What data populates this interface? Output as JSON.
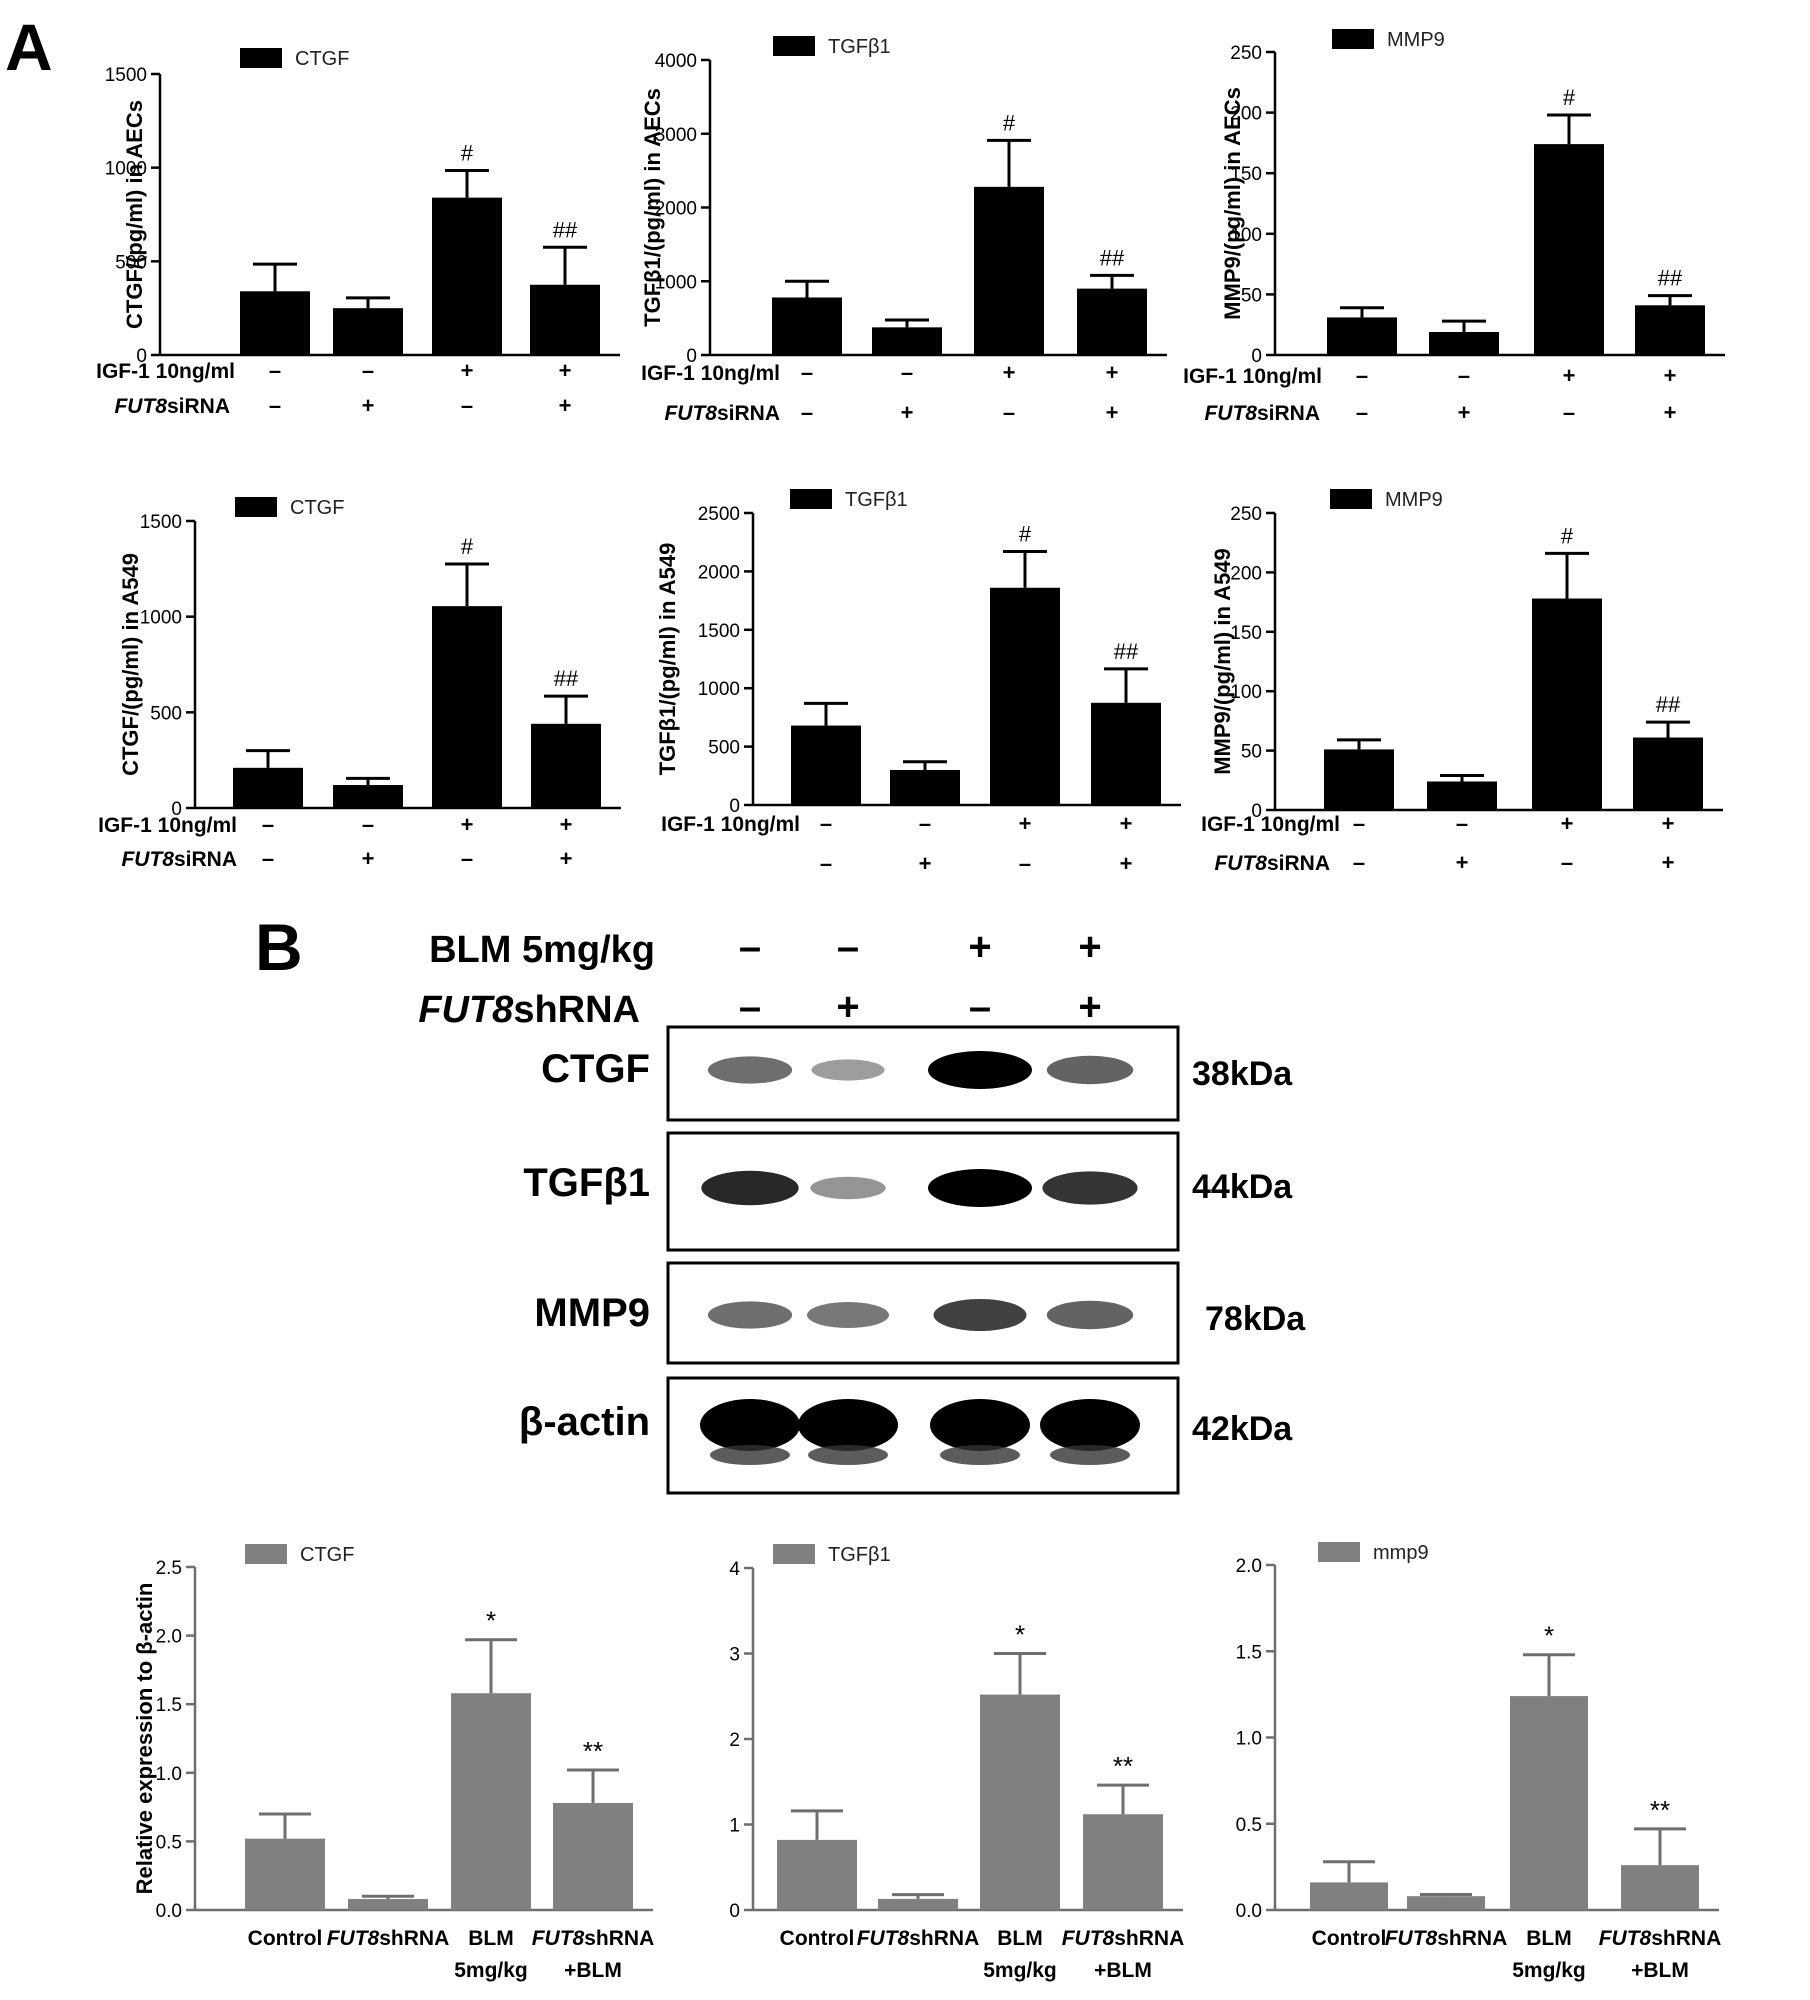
{
  "panels": {
    "a_label": "A",
    "b_label": "B"
  },
  "colors": {
    "bar_a": "#000000",
    "bar_b": "#808080",
    "blot_bg": "#ffffff"
  },
  "elisa": {
    "treatment1_label": "IGF-1 10ng/ml",
    "treatment2_gene": "FUT8",
    "treatment2_suffix": "siRNA",
    "treatment1_signs": [
      "–",
      "–",
      "+",
      "+"
    ],
    "treatment2_signs": [
      "–",
      "+",
      "–",
      "+"
    ]
  },
  "chart_data": [
    {
      "id": "aecs_ctgf",
      "type": "bar",
      "title": "",
      "legend": "CTGF",
      "ylabel": "CTGF/(pg/ml) in AECs",
      "categories": [
        "1",
        "2",
        "3",
        "4"
      ],
      "values": [
        340,
        250,
        840,
        375
      ],
      "errors": [
        145,
        55,
        145,
        200
      ],
      "annotations": [
        "",
        "",
        "#",
        "##"
      ],
      "ylim": [
        0,
        1500
      ],
      "yticks": [
        "0",
        "500",
        "1000",
        "1500"
      ],
      "ytick_values": [
        0,
        500,
        1000,
        1500
      ],
      "show_treatment2_label": true
    },
    {
      "id": "aecs_tgfb1",
      "type": "bar",
      "title": "",
      "legend": "TGFβ1",
      "ylabel": "TGFβ1/(pg/ml) in AECs",
      "categories": [
        "1",
        "2",
        "3",
        "4"
      ],
      "values": [
        780,
        375,
        2280,
        900
      ],
      "errors": [
        220,
        100,
        630,
        180
      ],
      "annotations": [
        "",
        "",
        "#",
        "##"
      ],
      "ylim": [
        0,
        4000
      ],
      "yticks": [
        "0",
        "1000",
        "2000",
        "3000",
        "4000"
      ],
      "ytick_values": [
        0,
        1000,
        2000,
        3000,
        4000
      ],
      "show_treatment2_label": true
    },
    {
      "id": "aecs_mmp9",
      "type": "bar",
      "title": "",
      "legend": "MMP9",
      "ylabel": "MMP9/(pg/ml) in AECs",
      "categories": [
        "1",
        "2",
        "3",
        "4"
      ],
      "values": [
        31,
        19,
        174,
        41
      ],
      "errors": [
        8,
        9,
        24,
        8
      ],
      "annotations": [
        "",
        "",
        "#",
        "##"
      ],
      "ylim": [
        0,
        250
      ],
      "yticks": [
        "0",
        "50",
        "100",
        "150",
        "200",
        "250"
      ],
      "ytick_values": [
        0,
        50,
        100,
        150,
        200,
        250
      ],
      "show_treatment2_label": true
    },
    {
      "id": "a549_ctgf",
      "type": "bar",
      "title": "",
      "legend": "CTGF",
      "ylabel": "CTGF/(pg/ml) in A549",
      "categories": [
        "1",
        "2",
        "3",
        "4"
      ],
      "values": [
        210,
        120,
        1055,
        440
      ],
      "errors": [
        90,
        35,
        220,
        145
      ],
      "annotations": [
        "",
        "",
        "#",
        "##"
      ],
      "ylim": [
        0,
        1500
      ],
      "yticks": [
        "0",
        "500",
        "1000",
        "1500"
      ],
      "ytick_values": [
        0,
        500,
        1000,
        1500
      ],
      "show_treatment2_label": true
    },
    {
      "id": "a549_tgfb1",
      "type": "bar",
      "title": "",
      "legend": "TGFβ1",
      "ylabel": "TGFβ1/(pg/ml) in A549",
      "categories": [
        "1",
        "2",
        "3",
        "4"
      ],
      "values": [
        680,
        300,
        1860,
        875
      ],
      "errors": [
        190,
        70,
        310,
        290
      ],
      "annotations": [
        "",
        "",
        "#",
        "##"
      ],
      "ylim": [
        0,
        2500
      ],
      "yticks": [
        "0",
        "500",
        "1000",
        "1500",
        "2000",
        "2500"
      ],
      "ytick_values": [
        0,
        500,
        1000,
        1500,
        2000,
        2500
      ],
      "show_treatment2_label": false
    },
    {
      "id": "a549_mmp9",
      "type": "bar",
      "title": "",
      "legend": "MMP9",
      "ylabel": "MMP9/(pg/ml) in A549",
      "categories": [
        "1",
        "2",
        "3",
        "4"
      ],
      "values": [
        51,
        24,
        178,
        61
      ],
      "errors": [
        8,
        5,
        38,
        13
      ],
      "annotations": [
        "",
        "",
        "#",
        "##"
      ],
      "ylim": [
        0,
        250
      ],
      "yticks": [
        "0",
        "50",
        "100",
        "150",
        "200",
        "250"
      ],
      "ytick_values": [
        0,
        50,
        100,
        150,
        200,
        250
      ],
      "show_treatment2_label": true
    },
    {
      "id": "blot_ctgf",
      "type": "bar",
      "title": "",
      "legend": "CTGF",
      "ylabel": "Relative expression to β-actin",
      "categories": [
        "Control",
        "FUT8shRNA",
        "BLM 5mg/kg",
        "FUT8shRNA +BLM"
      ],
      "values": [
        0.52,
        0.08,
        1.58,
        0.78
      ],
      "errors": [
        0.18,
        0.02,
        0.39,
        0.24
      ],
      "annotations": [
        "",
        "",
        "*",
        "**"
      ],
      "ylim": [
        0,
        2.5
      ],
      "yticks": [
        "0.0",
        "0.5",
        "1.0",
        "1.5",
        "2.0",
        "2.5"
      ],
      "ytick_values": [
        0,
        0.5,
        1.0,
        1.5,
        2.0,
        2.5
      ]
    },
    {
      "id": "blot_tgfb1",
      "type": "bar",
      "title": "",
      "legend": "TGFβ1",
      "ylabel": "",
      "categories": [
        "Control",
        "FUT8shRNA",
        "BLM 5mg/kg",
        "FUT8shRNA +BLM"
      ],
      "values": [
        0.82,
        0.13,
        2.52,
        1.12
      ],
      "errors": [
        0.34,
        0.05,
        0.48,
        0.34
      ],
      "annotations": [
        "",
        "",
        "*",
        "**"
      ],
      "ylim": [
        0,
        4
      ],
      "yticks": [
        "0",
        "1",
        "2",
        "3",
        "4"
      ],
      "ytick_values": [
        0,
        1,
        2,
        3,
        4
      ]
    },
    {
      "id": "blot_mmp9",
      "type": "bar",
      "title": "",
      "legend": "mmp9",
      "ylabel": "",
      "categories": [
        "Control",
        "FUT8shRNA",
        "BLM 5mg/kg",
        "FUT8shRNA +BLM"
      ],
      "values": [
        0.16,
        0.08,
        1.24,
        0.26
      ],
      "errors": [
        0.12,
        0.01,
        0.24,
        0.21
      ],
      "annotations": [
        "",
        "",
        "*",
        "**"
      ],
      "ylim": [
        0,
        2.0
      ],
      "yticks": [
        "0.0",
        "0.5",
        "1.0",
        "1.5",
        "2.0"
      ],
      "ytick_values": [
        0,
        0.5,
        1.0,
        1.5,
        2.0
      ]
    }
  ],
  "bottom_categories": [
    {
      "line1": "Control",
      "line2": "",
      "gene": ""
    },
    {
      "line1": "shRNA",
      "line2": "",
      "gene": "FUT8"
    },
    {
      "line1": "BLM",
      "line2": "5mg/kg",
      "gene": ""
    },
    {
      "line1": "shRNA",
      "line2": "+BLM",
      "gene": "FUT8"
    }
  ],
  "blot": {
    "treatment1_label": "BLM 5mg/kg",
    "treatment2_gene": "FUT8",
    "treatment2_suffix": "shRNA",
    "treatment1_signs": [
      "–",
      "–",
      "+",
      "+"
    ],
    "treatment2_signs": [
      "–",
      "+",
      "–",
      "+"
    ],
    "rows": [
      {
        "protein": "CTGF",
        "size": "38kDa",
        "intensity": [
          0.55,
          0.3,
          1.0,
          0.6
        ]
      },
      {
        "protein": "TGFβ1",
        "size": "44kDa",
        "intensity": [
          0.85,
          0.35,
          1.0,
          0.8
        ]
      },
      {
        "protein": "MMP9",
        "size": "78kDa",
        "intensity": [
          0.55,
          0.5,
          0.75,
          0.6
        ]
      },
      {
        "protein": "β-actin",
        "size": "42kDa",
        "intensity": [
          1.0,
          1.0,
          1.0,
          1.0
        ]
      }
    ]
  }
}
